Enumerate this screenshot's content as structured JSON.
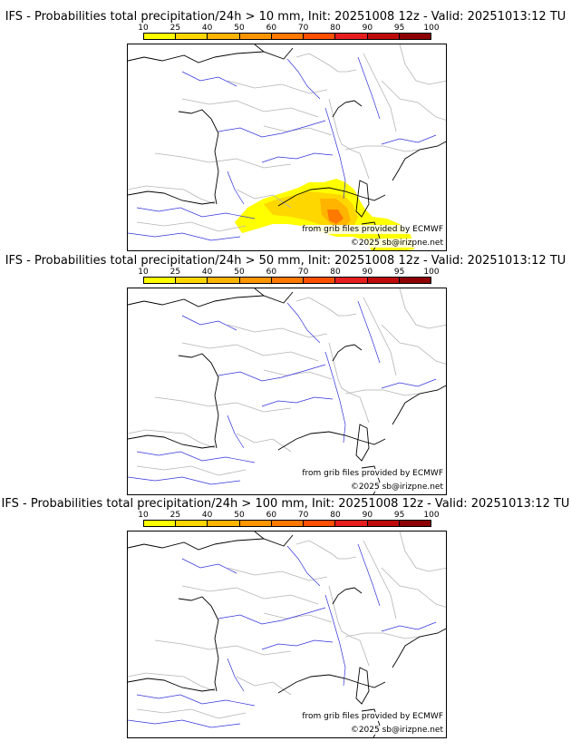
{
  "scale": {
    "labels": [
      "10",
      "25",
      "40",
      "50",
      "60",
      "70",
      "80",
      "90",
      "95",
      "100"
    ],
    "colors": [
      "#ffff00",
      "#ffd700",
      "#ffb400",
      "#ff9600",
      "#ff7800",
      "#ff5000",
      "#e61e1e",
      "#be0a0a",
      "#8c0000",
      "#5a0000"
    ]
  },
  "colors": {
    "coast": "#000000",
    "border": "#b4b4b4",
    "river": "#3232dc"
  },
  "panels": [
    {
      "title": "IFS - Probabilities total precipitation/24h > 10 mm, Init: 20251008 12z - Valid: 20251013:12 TU",
      "source": "from grib files provided by ECMWF",
      "copyright": "©2025 sb@irizpne.net",
      "precip": "high"
    },
    {
      "title": "IFS - Probabilities total precipitation/24h > 50 mm, Init: 20251008 12z - Valid: 20251013:12 TU",
      "source": "from grib files provided by ECMWF",
      "copyright": "©2025 sb@irizpne.net",
      "precip": "none"
    },
    {
      "title": "IFS - Probabilities total precipitation/24h > 100 mm, Init: 20251008 12z - Valid: 20251013:12 TU",
      "source": "from grib files provided by ECMWF",
      "copyright": "©2025 sb@irizpne.net",
      "precip": "none"
    }
  ]
}
